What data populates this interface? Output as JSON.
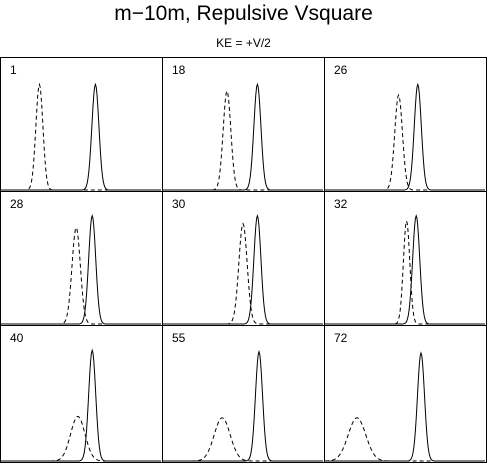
{
  "title": "m−10m,  Repulsive Vsquare",
  "subtitle": "KE = +V/2",
  "chart_data": {
    "type": "line",
    "title": "m−10m,  Repulsive Vsquare",
    "subtitle": "KE = +V/2",
    "xlabel": "",
    "ylabel": "",
    "grid": false,
    "layout": "3x3 small multiples",
    "line_styles": {
      "solid": "solid",
      "dashed": "dashed"
    },
    "x_domain": [
      0,
      1
    ],
    "y_domain": [
      0,
      1
    ],
    "panels": [
      {
        "label": "1",
        "solid": {
          "mu": 0.59,
          "sigma": 0.022,
          "peak": 0.8
        },
        "dashed": {
          "mu": 0.24,
          "sigma": 0.022,
          "peak": 0.8
        }
      },
      {
        "label": "18",
        "solid": {
          "mu": 0.59,
          "sigma": 0.022,
          "peak": 0.8
        },
        "dashed": {
          "mu": 0.4,
          "sigma": 0.024,
          "peak": 0.75
        }
      },
      {
        "label": "26",
        "solid": {
          "mu": 0.58,
          "sigma": 0.022,
          "peak": 0.8
        },
        "dashed": {
          "mu": 0.46,
          "sigma": 0.024,
          "peak": 0.72
        }
      },
      {
        "label": "28",
        "solid": {
          "mu": 0.57,
          "sigma": 0.022,
          "peak": 0.82
        },
        "dashed": {
          "mu": 0.47,
          "sigma": 0.026,
          "peak": 0.73
        }
      },
      {
        "label": "30",
        "solid": {
          "mu": 0.59,
          "sigma": 0.022,
          "peak": 0.82
        },
        "dashed": {
          "mu": 0.5,
          "sigma": 0.026,
          "peak": 0.76
        }
      },
      {
        "label": "32",
        "solid": {
          "mu": 0.57,
          "sigma": 0.022,
          "peak": 0.82
        },
        "dashed": {
          "mu": 0.51,
          "sigma": 0.02,
          "peak": 0.78
        }
      },
      {
        "label": "40",
        "solid": {
          "mu": 0.57,
          "sigma": 0.022,
          "peak": 0.82
        },
        "dashed": {
          "mu": 0.48,
          "sigma": 0.045,
          "peak": 0.33
        }
      },
      {
        "label": "55",
        "solid": {
          "mu": 0.6,
          "sigma": 0.022,
          "peak": 0.81
        },
        "dashed": {
          "mu": 0.37,
          "sigma": 0.05,
          "peak": 0.32
        }
      },
      {
        "label": "72",
        "solid": {
          "mu": 0.6,
          "sigma": 0.022,
          "peak": 0.8
        },
        "dashed": {
          "mu": 0.2,
          "sigma": 0.055,
          "peak": 0.32
        }
      }
    ]
  }
}
